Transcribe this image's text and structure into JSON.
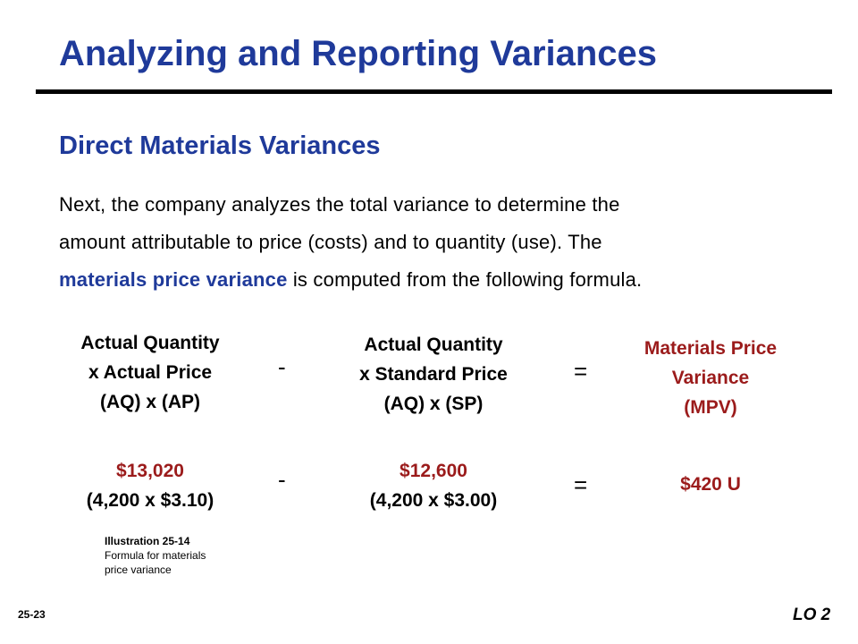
{
  "slide": {
    "title": "Analyzing and Reporting Variances",
    "subtitle": "Direct Materials Variances",
    "paragraph": {
      "line1": "Next, the company analyzes the total variance to determine the",
      "line2": "amount attributable to price (costs) and to quantity (use).  The",
      "highlight": "materials price variance",
      "line3_rest": " is computed from the following formula."
    },
    "formula": {
      "col1": [
        "Actual Quantity",
        "x Actual Price",
        "(AQ) x (AP)"
      ],
      "col2": [
        "Actual Quantity",
        "x Standard Price",
        "(AQ) x (SP)"
      ],
      "col3": [
        "Materials Price",
        "Variance",
        "(MPV)"
      ],
      "minus": "-",
      "equals": "="
    },
    "values": {
      "col1_amount": "$13,020",
      "col1_calc": "(4,200 x $3.10)",
      "col2_amount": "$12,600",
      "col2_calc": "(4,200 x $3.00)",
      "result": "$420 U"
    },
    "caption": {
      "title": "Illustration 25-14",
      "lines": [
        "Formula for materials",
        "price variance"
      ]
    },
    "slide_number": "25-23",
    "lo_tag": "LO 2",
    "colors": {
      "heading_blue": "#1f3a9a",
      "accent_red": "#9b1b1b",
      "text_black": "#000000"
    }
  }
}
